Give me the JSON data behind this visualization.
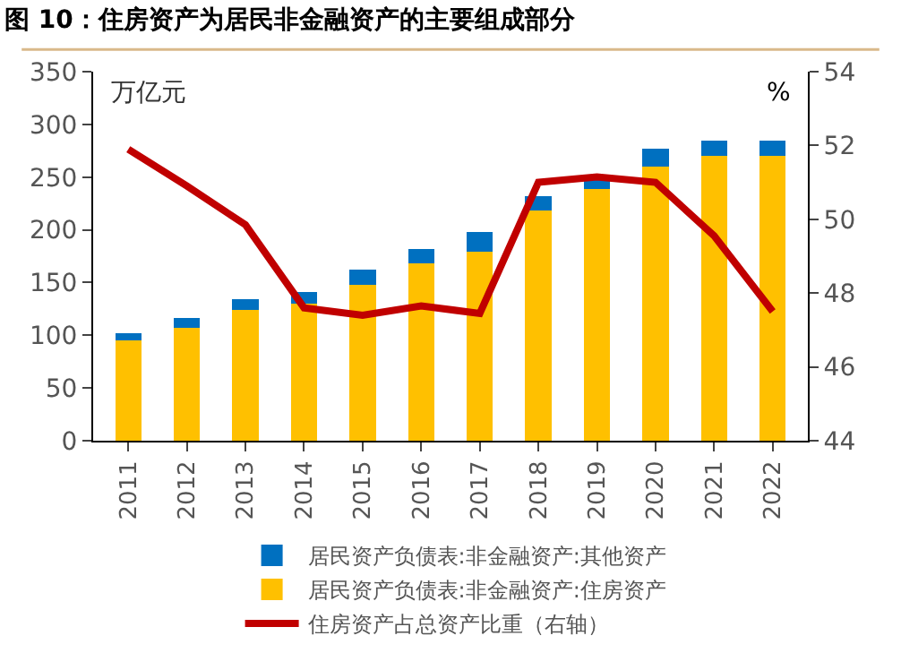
{
  "chart_data": {
    "type": "bar",
    "title": "图 10：住房资产为居民非金融资产的主要组成部分",
    "ylabel": "万亿元",
    "y2label": "%",
    "categories": [
      "2011",
      "2012",
      "2013",
      "2014",
      "2015",
      "2016",
      "2017",
      "2018",
      "2019",
      "2020",
      "2021",
      "2022"
    ],
    "stacked": true,
    "series": [
      {
        "name": "居民资产负债表:非金融资产:住房资产",
        "color": "#ffc000",
        "values": [
          95,
          107,
          124,
          130,
          148,
          168,
          179,
          218,
          239,
          260,
          270,
          270
        ]
      },
      {
        "name": "居民资产负债表:非金融资产:其他资产",
        "color": "#0070c0",
        "values": [
          7,
          9,
          10,
          11,
          14,
          14,
          19,
          14,
          12,
          17,
          15,
          15
        ]
      },
      {
        "name": "住房资产占总资产比重（右轴）",
        "color": "#c00000",
        "type": "line",
        "axis": "y2",
        "values": [
          51.9,
          50.9,
          49.85,
          47.6,
          47.4,
          47.65,
          47.45,
          51.0,
          51.15,
          51.0,
          49.55,
          47.5
        ]
      }
    ],
    "ylim": [
      0,
      350
    ],
    "yticks": [
      0,
      50,
      100,
      150,
      200,
      250,
      300,
      350
    ],
    "y2lim": [
      44,
      54
    ],
    "y2ticks": [
      44,
      46,
      48,
      50,
      52,
      54
    ],
    "legend": "bottom",
    "marker": "none",
    "line_style": "solid"
  }
}
